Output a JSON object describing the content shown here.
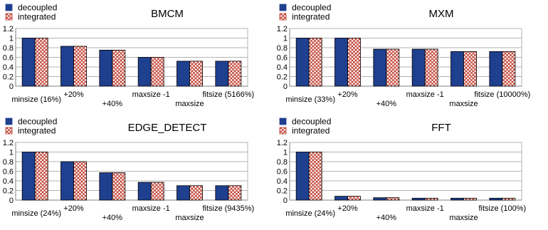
{
  "colors": {
    "decoupled": "#1f3f8f",
    "integrated_fill": "#ffffff",
    "integrated_pattern": "#c0392b",
    "axis": "#808080",
    "grid": "#b3b3b3",
    "plot_border": "#b3b3b3"
  },
  "chart_data": [
    {
      "type": "bar",
      "title": "BMCM",
      "categories": [
        "minsize (16%)",
        "+20%",
        "+40%",
        "maxsize -1",
        "maxsize",
        "fitsize (5166%)"
      ],
      "series": [
        {
          "name": "decoupled",
          "values": [
            1.0,
            0.83,
            0.75,
            0.6,
            0.52,
            0.52
          ]
        },
        {
          "name": "integrated",
          "values": [
            1.0,
            0.83,
            0.75,
            0.6,
            0.52,
            0.52
          ]
        }
      ],
      "ylim": [
        0,
        1.2
      ],
      "yticks": [
        "0",
        "0.2",
        "0.4",
        "0.6",
        "0.8",
        "1",
        "1.2"
      ],
      "legend": "top-left",
      "grid": true
    },
    {
      "type": "bar",
      "title": "MXM",
      "categories": [
        "minsize (33%)",
        "+20%",
        "+40%",
        "maxsize -1",
        "maxsize",
        "fitsize (10000%)"
      ],
      "series": [
        {
          "name": "decoupled",
          "values": [
            1.0,
            1.0,
            0.77,
            0.77,
            0.72,
            0.72
          ]
        },
        {
          "name": "integrated",
          "values": [
            1.0,
            1.0,
            0.77,
            0.77,
            0.72,
            0.72
          ]
        }
      ],
      "ylim": [
        0,
        1.2
      ],
      "yticks": [
        "0",
        "0.2",
        "0.4",
        "0.6",
        "0.8",
        "1",
        "1.2"
      ],
      "legend": "top-left",
      "grid": true
    },
    {
      "type": "bar",
      "title": "EDGE_DETECT",
      "categories": [
        "minsize (24%)",
        "+20%",
        "+40%",
        "maxsize -1",
        "maxsize",
        "fitsize (9435%)"
      ],
      "series": [
        {
          "name": "decoupled",
          "values": [
            1.0,
            0.8,
            0.57,
            0.37,
            0.3,
            0.3
          ]
        },
        {
          "name": "integrated",
          "values": [
            1.0,
            0.8,
            0.57,
            0.37,
            0.3,
            0.3
          ]
        }
      ],
      "ylim": [
        0,
        1.2
      ],
      "yticks": [
        "0",
        "0.2",
        "0.4",
        "0.6",
        "0.8",
        "1",
        "1.2"
      ],
      "legend": "top-left",
      "grid": true
    },
    {
      "type": "bar",
      "title": "FFT",
      "categories": [
        "minsize (24%)",
        "+20%",
        "+40%",
        "maxsize -1",
        "maxsize",
        "fitsize (100%)"
      ],
      "series": [
        {
          "name": "decoupled",
          "values": [
            1.0,
            0.08,
            0.05,
            0.04,
            0.04,
            0.04
          ]
        },
        {
          "name": "integrated",
          "values": [
            1.0,
            0.08,
            0.05,
            0.04,
            0.04,
            0.04
          ]
        }
      ],
      "ylim": [
        0,
        1.2
      ],
      "yticks": [
        "0",
        "0.2",
        "0.4",
        "0.6",
        "0.8",
        "1",
        "1.2"
      ],
      "legend": "top-left",
      "grid": true
    }
  ]
}
